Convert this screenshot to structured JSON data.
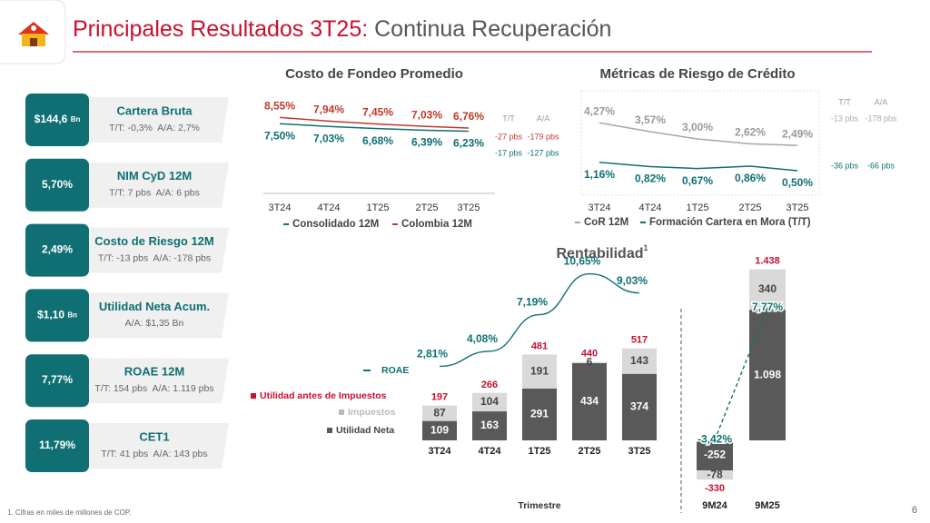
{
  "header": {
    "title": "Principales Resultados 3T25:",
    "subtitle": "Continua Recuperación"
  },
  "kpis": [
    {
      "value": "$144,6",
      "unit": "Bn",
      "label": "Cartera Bruta",
      "detail": "T/T: -0,3%  A/A: 2,7%"
    },
    {
      "value": "5,70%",
      "label": "NIM CyD 12M",
      "detail": "T/T: 7 pbs  A/A: 6 pbs"
    },
    {
      "value": "2,49%",
      "label": "Costo de Riesgo 12M",
      "detail": "T/T: -13 pbs  A/A: -178 pbs"
    },
    {
      "value": "$1,10",
      "unit": "Bn",
      "label": "Utilidad Neta Acum.",
      "detail": "A/A: $1,35 Bn"
    },
    {
      "value": "7,77%",
      "label": "ROAE 12M",
      "detail": "T/T: 154 pbs  A/A: 1.119 pbs"
    },
    {
      "value": "11,79%",
      "label": "CET1",
      "detail": "T/T: 41 pbs  A/A: 143 pbs"
    }
  ],
  "chart_data": [
    {
      "type": "line",
      "title": "Costo de Fondeo Promedio",
      "categories": [
        "3T24",
        "4T24",
        "1T25",
        "2T25",
        "3T25"
      ],
      "series": [
        {
          "name": "Consolidado 12M",
          "color": "#0f6f73",
          "values": [
            7.5,
            7.03,
            6.68,
            6.39,
            6.23
          ],
          "value_labels": [
            "7,50%",
            "7,03%",
            "6,68%",
            "6,39%",
            "6,23%"
          ]
        },
        {
          "name": "Colombia 12M",
          "color": "#c0392b",
          "values": [
            8.55,
            7.94,
            7.45,
            7.03,
            6.76
          ],
          "value_labels": [
            "8,55%",
            "7,94%",
            "7,45%",
            "7,03%",
            "6,76%"
          ]
        }
      ],
      "change_headers": [
        "T/T",
        "A/A"
      ],
      "changes": [
        [
          "-17 pbs",
          "-127 pbs"
        ],
        [
          "-27 pbs",
          "-179 pbs"
        ]
      ]
    },
    {
      "type": "line",
      "title": "Métricas de Riesgo de Crédito",
      "categories": [
        "3T24",
        "4T24",
        "1T25",
        "2T25",
        "3T25"
      ],
      "series": [
        {
          "name": "CoR 12M",
          "color": "#a6a6a6",
          "values": [
            4.27,
            3.57,
            3.0,
            2.62,
            2.49
          ],
          "value_labels": [
            "4,27%",
            "3,57%",
            "3,00%",
            "2,62%",
            "2,49%"
          ]
        },
        {
          "name": "Formación Cartera en Mora (T/T)",
          "color": "#0f6f73",
          "values": [
            1.16,
            0.82,
            0.67,
            0.86,
            0.5
          ],
          "value_labels": [
            "1,16%",
            "0,82%",
            "0,67%",
            "0,86%",
            "0,50%"
          ]
        }
      ],
      "change_headers": [
        "T/T",
        "A/A"
      ],
      "changes": [
        [
          "-13 pbs",
          "-178 pbs"
        ],
        [
          "-36 pbs",
          "-66 pbs"
        ]
      ]
    },
    {
      "type": "bar_line",
      "title": "Rentabilidad",
      "title_note": "1",
      "x_label": "Trimestre",
      "categories": [
        "3T24",
        "4T24",
        "1T25",
        "2T25",
        "3T25"
      ],
      "series": [
        {
          "name": "ROAE",
          "kind": "line",
          "color": "#0f6f73",
          "values": [
            2.81,
            4.08,
            7.19,
            10.65,
            9.03
          ],
          "value_labels": [
            "2,81%",
            "4,08%",
            "7,19%",
            "10,65%",
            "9,03%"
          ]
        },
        {
          "name": "Utilidad antes de Impuestos",
          "kind": "total",
          "color": "#c8102e",
          "values": [
            197,
            266,
            481,
            440,
            517
          ]
        },
        {
          "name": "Impuestos",
          "kind": "bar",
          "color": "#d9d9d9",
          "values": [
            87,
            104,
            191,
            6,
            143
          ]
        },
        {
          "name": "Utilidad Neta",
          "kind": "bar",
          "color": "#595959",
          "values": [
            109,
            163,
            291,
            434,
            374
          ]
        }
      ]
    },
    {
      "type": "bar_line",
      "categories": [
        "9M24",
        "9M25"
      ],
      "series": [
        {
          "kind": "line",
          "dashed": true,
          "color": "#0f6f73",
          "values": [
            -3.42,
            7.77
          ],
          "value_labels": [
            "-3,42%",
            "7,77%"
          ]
        },
        {
          "kind": "total",
          "color": "#c8102e",
          "values": [
            -330,
            1438
          ],
          "value_labels": [
            "-330",
            "1.438"
          ]
        },
        {
          "kind": "bar",
          "color": "#d9d9d9",
          "values": [
            -78,
            340
          ]
        },
        {
          "kind": "bar",
          "color": "#595959",
          "values": [
            -252,
            1098
          ],
          "value_labels": [
            "-252",
            "1.098"
          ]
        }
      ]
    }
  ],
  "footnote": "1. Cifras en miles de millones de COP.",
  "page_number": "6"
}
